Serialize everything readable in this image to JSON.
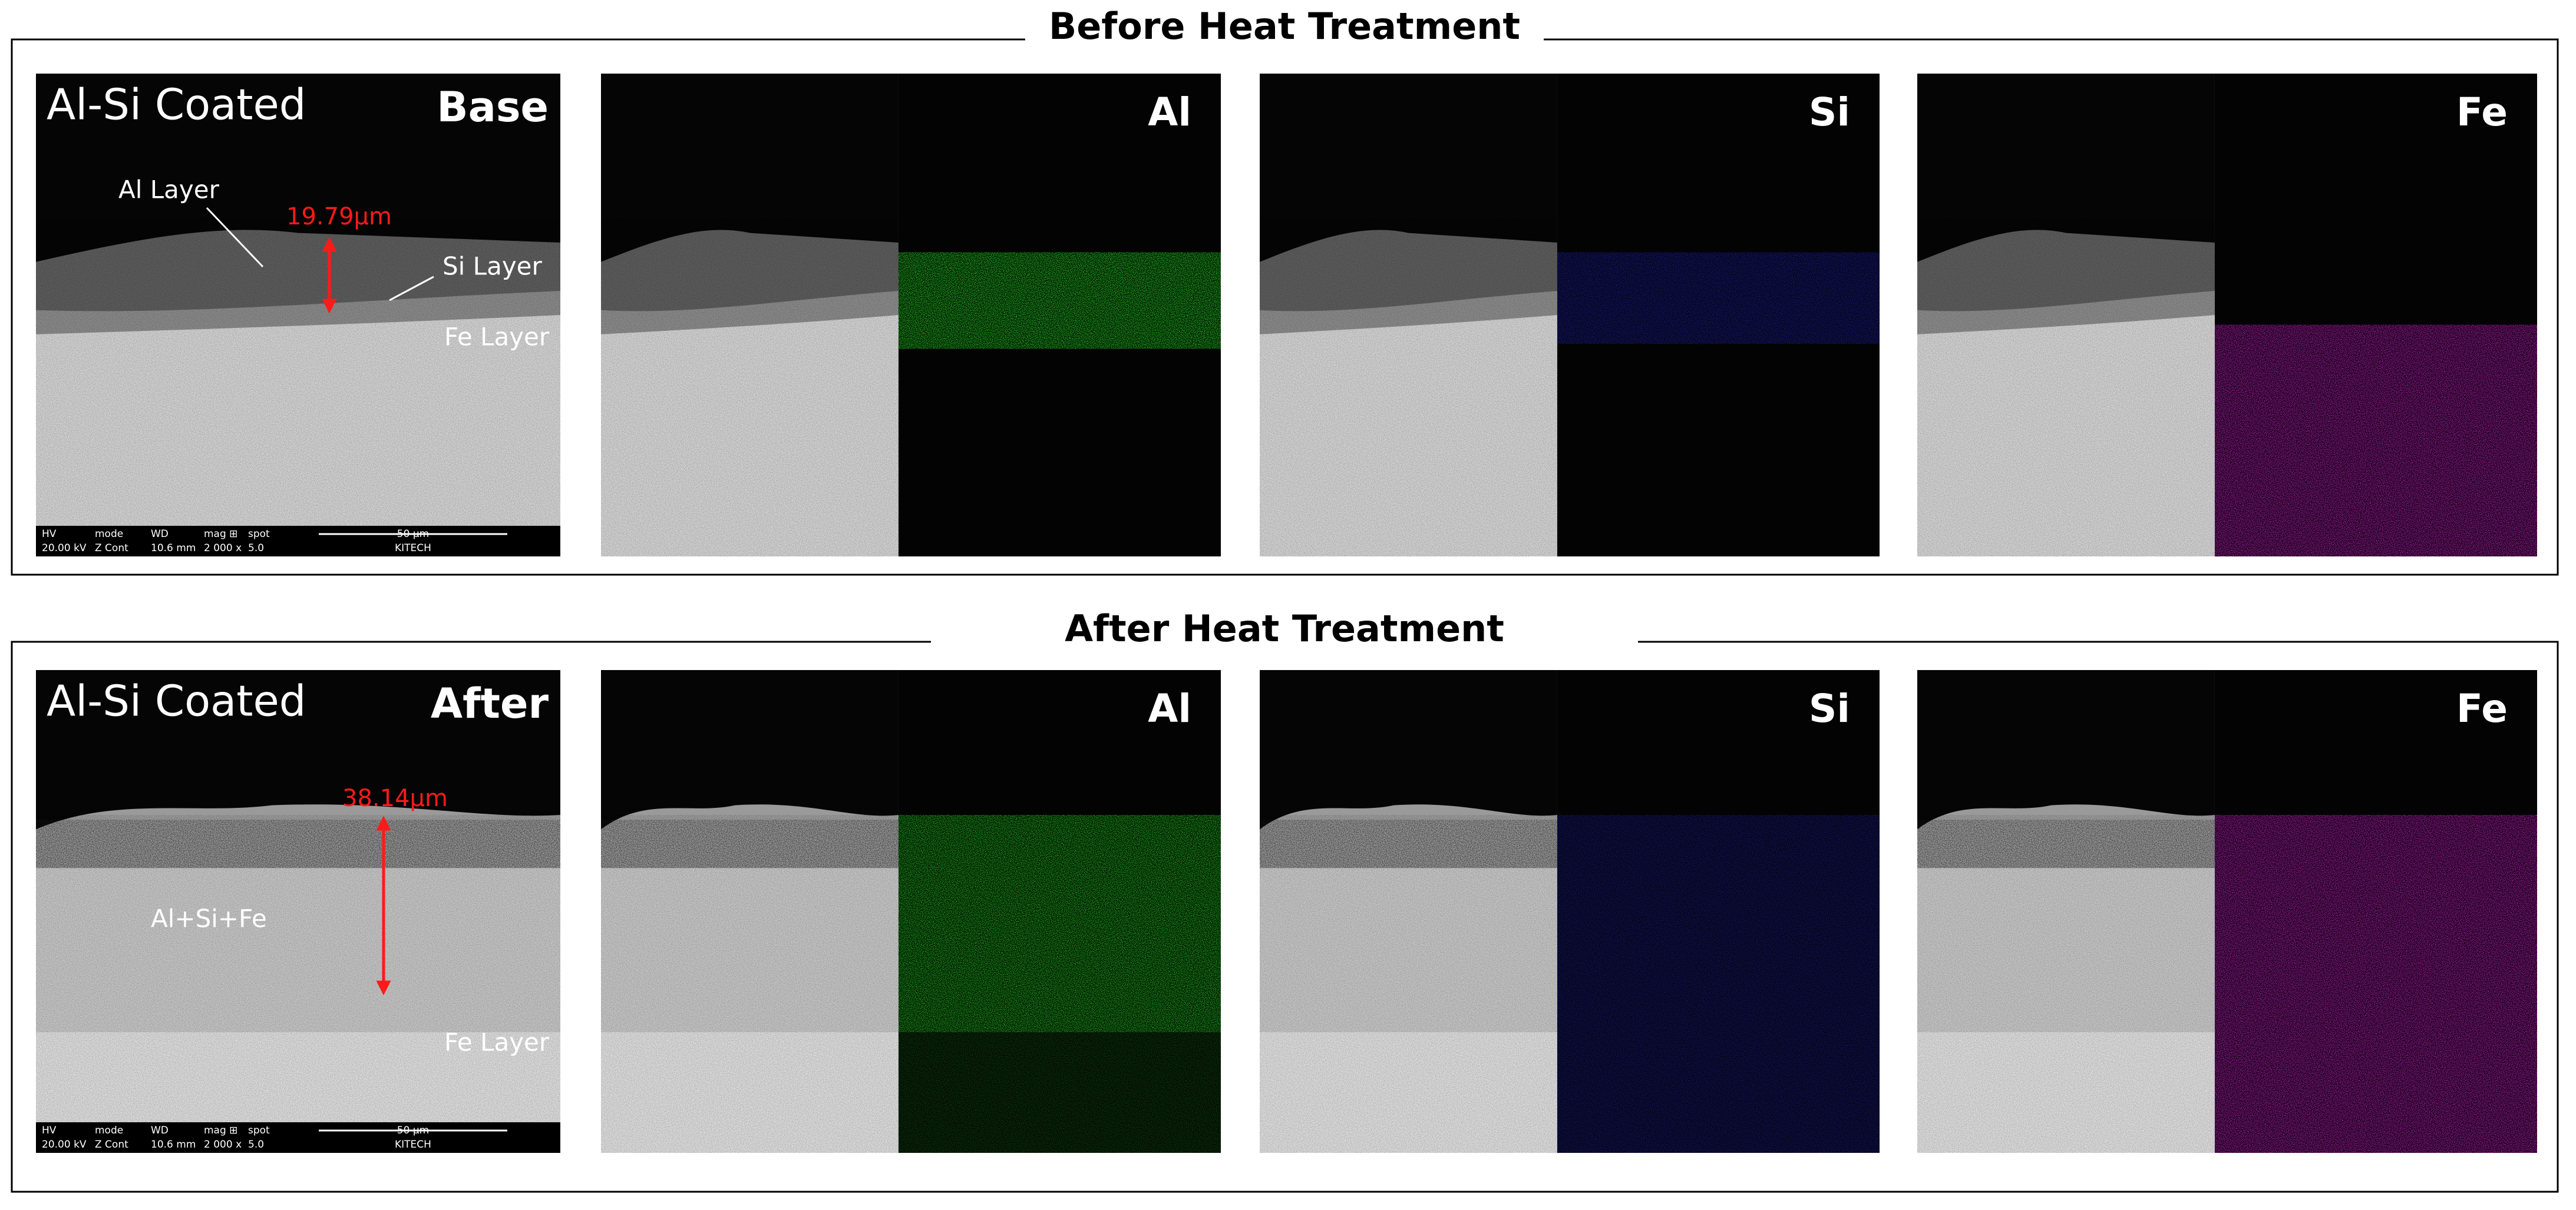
{
  "panels": [
    {
      "title": "Before Heat Treatment",
      "sem": {
        "label": "Al-Si Coated",
        "tag": "Base",
        "thickness": "19.79μm",
        "annotations": [
          "Al Layer",
          "Si Layer",
          "Fe Layer"
        ]
      },
      "maps": [
        "Al",
        "Si",
        "Fe"
      ]
    },
    {
      "title": "After Heat Treatment",
      "sem": {
        "label": "Al-Si Coated",
        "tag": "After",
        "thickness": "38.14μm",
        "annotations": [
          "Al+Si+Fe",
          "Fe Layer"
        ]
      },
      "maps": [
        "Al",
        "Si",
        "Fe"
      ]
    }
  ],
  "databar": {
    "headers": [
      "HV",
      "mode",
      "WD",
      "mag ⊞",
      "spot",
      "50 μm"
    ],
    "values": [
      "20.00 kV",
      "Z Cont",
      "10.6 mm",
      "2 000 x",
      "5.0",
      "KITECH"
    ]
  }
}
